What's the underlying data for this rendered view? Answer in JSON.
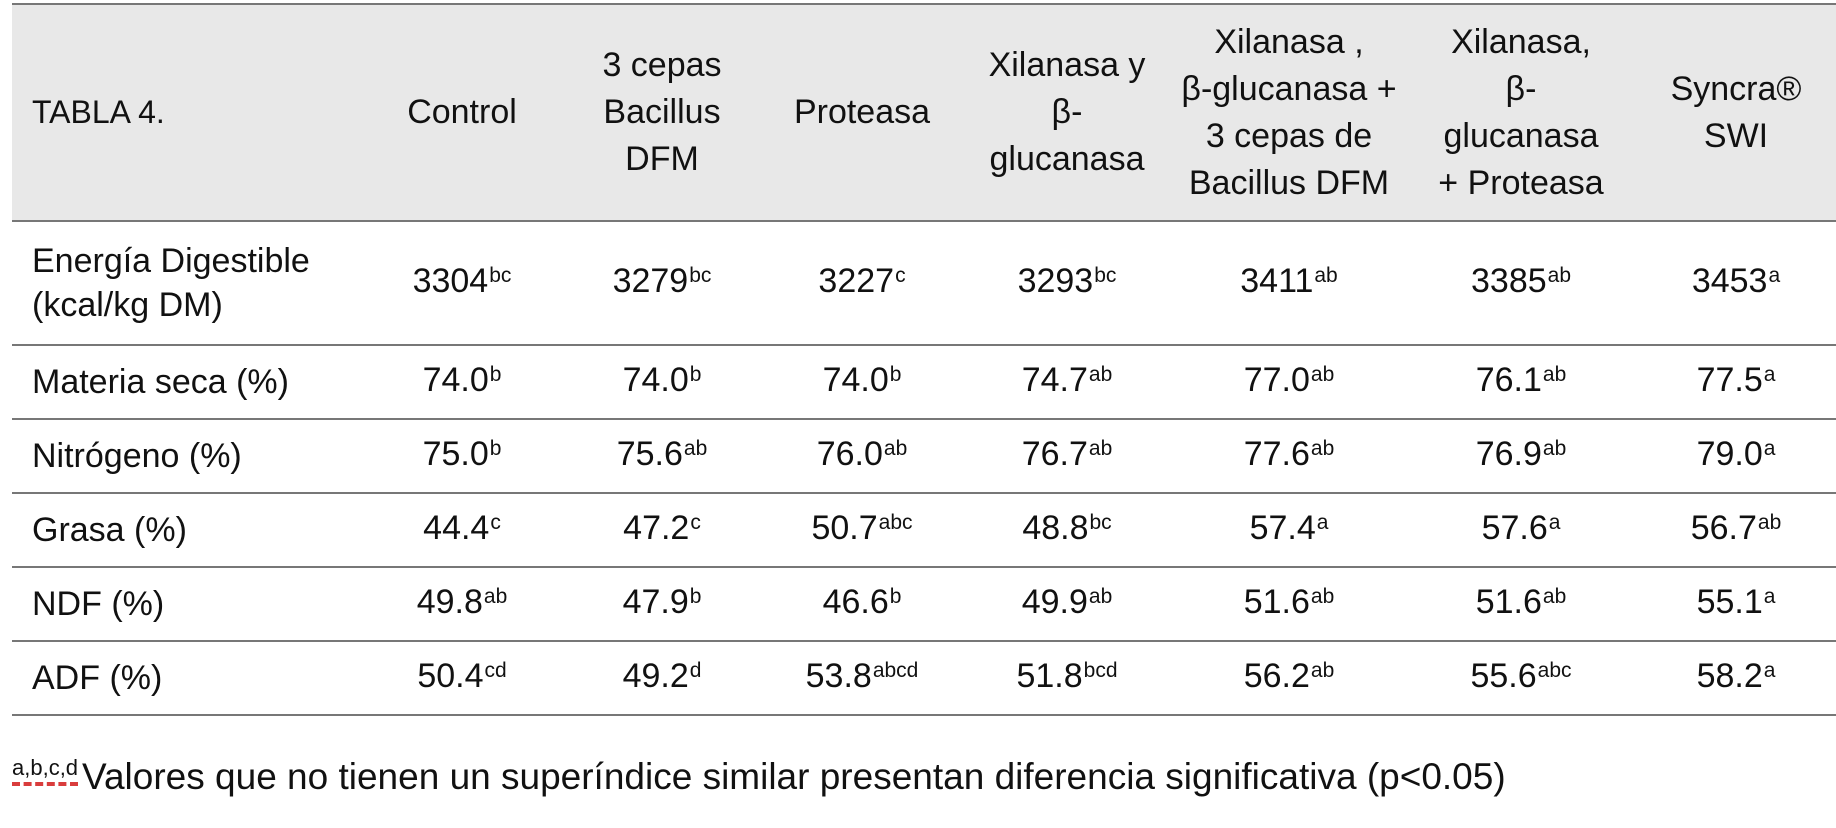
{
  "table": {
    "caption": "TABLA 4.",
    "columns": [
      [
        "Control"
      ],
      [
        "3 cepas",
        "Bacillus",
        "DFM"
      ],
      [
        "Proteasa"
      ],
      [
        "Xilanasa y",
        "β-",
        "glucanasa"
      ],
      [
        "Xilanasa ,",
        "β-glucanasa +",
        "3 cepas de",
        "Bacillus DFM"
      ],
      [
        "Xilanasa,",
        "β-",
        "glucanasa",
        "+ Proteasa"
      ],
      [
        "Syncra®",
        "SWI"
      ]
    ],
    "rows": [
      {
        "label": [
          "Energía Digestible",
          "(kcal/kg DM)"
        ],
        "cells": [
          {
            "v": "3304",
            "s": "bc"
          },
          {
            "v": "3279",
            "s": "bc"
          },
          {
            "v": "3227",
            "s": "c"
          },
          {
            "v": "3293",
            "s": "bc"
          },
          {
            "v": "3411",
            "s": "ab"
          },
          {
            "v": "3385",
            "s": "ab"
          },
          {
            "v": "3453",
            "s": "a"
          }
        ]
      },
      {
        "label": [
          "Materia seca (%)"
        ],
        "cells": [
          {
            "v": "74.0",
            "s": "b"
          },
          {
            "v": "74.0",
            "s": "b"
          },
          {
            "v": "74.0",
            "s": "b"
          },
          {
            "v": "74.7",
            "s": "ab"
          },
          {
            "v": "77.0",
            "s": "ab"
          },
          {
            "v": "76.1",
            "s": "ab"
          },
          {
            "v": "77.5",
            "s": "a"
          }
        ]
      },
      {
        "label": [
          "Nitrógeno (%)"
        ],
        "cells": [
          {
            "v": "75.0",
            "s": "b"
          },
          {
            "v": "75.6",
            "s": "ab"
          },
          {
            "v": "76.0",
            "s": "ab"
          },
          {
            "v": "76.7",
            "s": "ab"
          },
          {
            "v": "77.6",
            "s": "ab"
          },
          {
            "v": "76.9",
            "s": "ab"
          },
          {
            "v": "79.0",
            "s": "a"
          }
        ]
      },
      {
        "label": [
          "Grasa (%)"
        ],
        "cells": [
          {
            "v": "44.4",
            "s": "c"
          },
          {
            "v": "47.2",
            "s": "c"
          },
          {
            "v": "50.7",
            "s": "abc"
          },
          {
            "v": "48.8",
            "s": "bc"
          },
          {
            "v": "57.4",
            "s": "a"
          },
          {
            "v": "57.6",
            "s": "a"
          },
          {
            "v": "56.7",
            "s": "ab"
          }
        ]
      },
      {
        "label": [
          "NDF (%)"
        ],
        "cells": [
          {
            "v": "49.8",
            "s": "ab"
          },
          {
            "v": "47.9",
            "s": "b"
          },
          {
            "v": "46.6",
            "s": "b"
          },
          {
            "v": "49.9",
            "s": "ab"
          },
          {
            "v": "51.6",
            "s": "ab"
          },
          {
            "v": "51.6",
            "s": "ab"
          },
          {
            "v": "55.1",
            "s": "a"
          }
        ]
      },
      {
        "label": [
          "ADF (%)"
        ],
        "cells": [
          {
            "v": "50.4",
            "s": "cd"
          },
          {
            "v": "49.2",
            "s": "d"
          },
          {
            "v": "53.8",
            "s": "abcd"
          },
          {
            "v": "51.8",
            "s": "bcd"
          },
          {
            "v": "56.2",
            "s": "ab"
          },
          {
            "v": "55.6",
            "s": "abc"
          },
          {
            "v": "58.2",
            "s": "a"
          }
        ]
      }
    ]
  },
  "footnote": {
    "superscript": "a,b,c,d",
    "text": "Valores que no tienen un superíndice similar presentan diferencia significativa (p<0.05)"
  }
}
